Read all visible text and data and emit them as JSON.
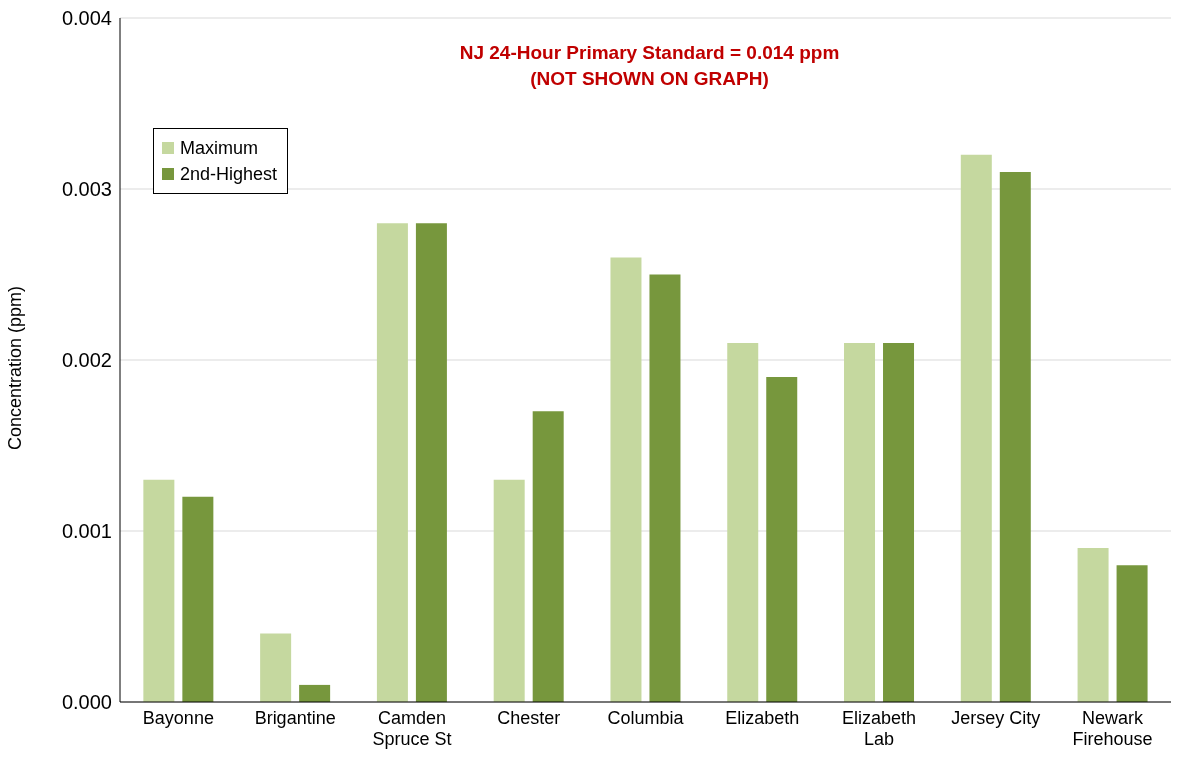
{
  "chart_data": {
    "type": "bar",
    "ylabel": "Concentration (ppm)",
    "annotations": [
      "NJ 24-Hour Primary Standard = 0.014 ppm",
      "(NOT SHOWN ON GRAPH)"
    ],
    "categories": [
      "Bayonne",
      "Brigantine",
      "Camden Spruce St",
      "Chester",
      "Columbia",
      "Elizabeth",
      "Elizabeth Lab",
      "Jersey City",
      "Newark Firehouse"
    ],
    "series": [
      {
        "name": "Maximum",
        "color": "#c5d89f",
        "values": [
          0.0013,
          0.0004,
          0.0028,
          0.0013,
          0.0026,
          0.0021,
          0.0021,
          0.0032,
          0.0009
        ]
      },
      {
        "name": "2nd-Highest",
        "color": "#77973d",
        "values": [
          0.0012,
          0.0001,
          0.0028,
          0.0017,
          0.0025,
          0.0019,
          0.0021,
          0.0031,
          0.0008
        ]
      }
    ],
    "ylim": [
      0,
      0.004
    ],
    "yticks": [
      {
        "value": 0,
        "label": "0.000"
      },
      {
        "value": 0.001,
        "label": "0.001"
      },
      {
        "value": 0.002,
        "label": "0.002"
      },
      {
        "value": 0.003,
        "label": "0.003"
      },
      {
        "value": 0.004,
        "label": "0.004"
      }
    ],
    "grid": "y",
    "legend": "top left"
  }
}
